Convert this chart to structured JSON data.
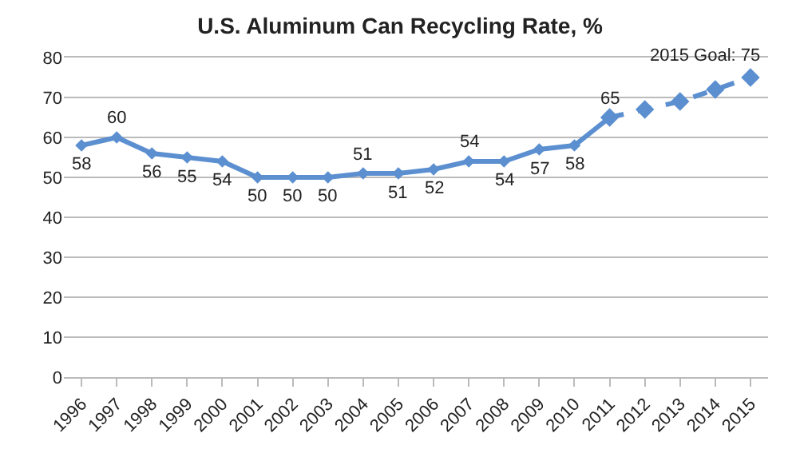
{
  "chart_data": {
    "type": "line",
    "title": "U.S. Aluminum Can Recycling Rate, %",
    "categories": [
      "1996",
      "1997",
      "1998",
      "1999",
      "2000",
      "2001",
      "2002",
      "2003",
      "2004",
      "2005",
      "2006",
      "2007",
      "2008",
      "2009",
      "2010",
      "2011",
      "2012",
      "2013",
      "2014",
      "2015"
    ],
    "series": [
      {
        "color": "#5b8fd0",
        "line_style": "solid",
        "values": [
          58,
          60,
          56,
          55,
          54,
          50,
          50,
          50,
          51,
          51,
          52,
          54,
          54,
          57,
          58,
          65,
          null,
          null,
          null,
          null
        ],
        "value_labels": [
          "58",
          "60",
          "56",
          "55",
          "54",
          "50",
          "50",
          "50",
          "51",
          "51",
          "52",
          "54",
          "54",
          "57",
          "58",
          "65",
          null,
          null,
          null,
          null
        ]
      },
      {
        "color": "#5b8fd0",
        "line_style": "dashed",
        "values": [
          null,
          null,
          null,
          null,
          null,
          null,
          null,
          null,
          null,
          null,
          null,
          null,
          null,
          null,
          null,
          65,
          67,
          69,
          72,
          75
        ],
        "value_labels": [
          null,
          null,
          null,
          null,
          null,
          null,
          null,
          null,
          null,
          null,
          null,
          null,
          null,
          null,
          null,
          null,
          null,
          null,
          null,
          "2015 Goal: 75"
        ]
      }
    ],
    "ylim": [
      0,
      80
    ],
    "yticks": [
      0,
      10,
      20,
      30,
      40,
      50,
      60,
      70,
      80
    ],
    "grid": "y",
    "marker": "diamond"
  }
}
